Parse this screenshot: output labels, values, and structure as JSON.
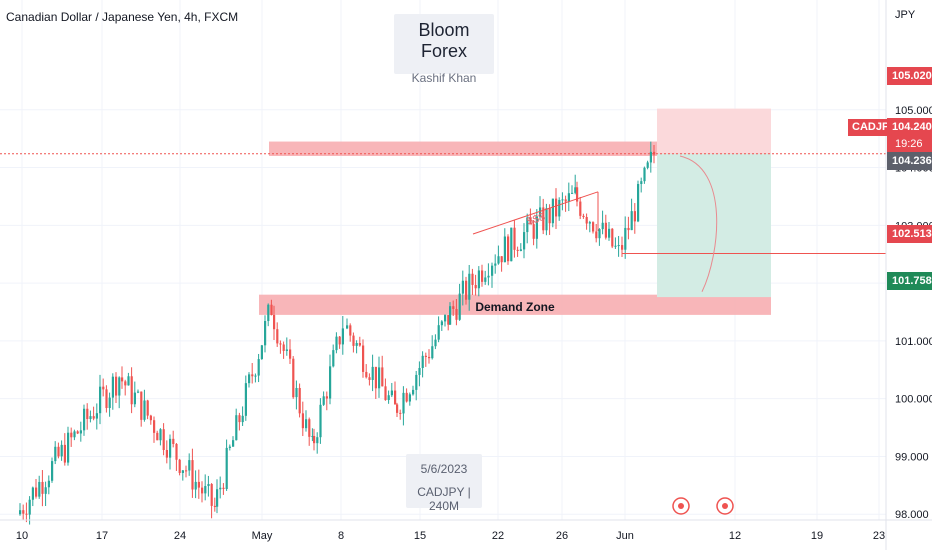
{
  "header": {
    "symbol_title": "Canadian Dollar / Japanese Yen, 4h, FXCM"
  },
  "watermark": {
    "title": "Bloom Forex",
    "subtitle": "Kashif Khan"
  },
  "info_box": {
    "date": "5/6/2023",
    "symbol_interval": "CADJPY | 240M"
  },
  "price_scale": {
    "currency": "JPY"
  },
  "badges": {
    "target": "105.020",
    "symbol": "CADJPY",
    "last": "104.240",
    "countdown": "19:26",
    "bid": "104.236",
    "level": "102.513",
    "stop": "101.758"
  },
  "annotations": {
    "demand_zone": "Demand Zone",
    "liquidity": "$$$"
  },
  "colors": {
    "up": "#26a69a",
    "down": "#ef5350",
    "zone": "#f7a9ad",
    "profit": "#d3ece4",
    "loss": "#fbd9db",
    "badge_red": "#e5474f",
    "badge_green": "#1f8a58",
    "badge_gray": "#5d606b"
  },
  "chart_data": {
    "type": "candlestick",
    "title": "Canadian Dollar / Japanese Yen, 4h, FXCM",
    "x_ticks": [
      "10",
      "17",
      "24",
      "May",
      "8",
      "15",
      "22",
      "26",
      "Jun",
      "12",
      "19",
      "23"
    ],
    "y_ticks": [
      98.0,
      99.0,
      100.0,
      101.0,
      102.0,
      103.0,
      104.0,
      105.0
    ],
    "y_tick_labels": [
      "98.000",
      "99.000",
      "100.000",
      "101.000",
      "102.000",
      "103.000",
      "104.000",
      "105.000"
    ],
    "ylim": [
      97.9,
      106.9
    ],
    "grid": true,
    "close_path": [
      {
        "date": "10",
        "value": 98.0
      },
      {
        "date": "17",
        "value": 100.4
      },
      {
        "date": "24",
        "value": 98.1
      },
      {
        "date": "May",
        "value": 101.6
      },
      {
        "date": "8",
        "value": 99.1
      },
      {
        "date": "8",
        "value": 101.3
      },
      {
        "date": "15",
        "value": 99.8
      },
      {
        "date": "15",
        "value": 101.4
      },
      {
        "date": "22",
        "value": 102.4
      },
      {
        "date": "26",
        "value": 103.5
      },
      {
        "date": "Jun",
        "value": 102.5
      },
      {
        "date": "Jun",
        "value": 104.24
      }
    ],
    "demand_zone": [
      101.45,
      101.8
    ],
    "resistance_zone": [
      104.2,
      104.45
    ],
    "position": {
      "target": 105.02,
      "entry": 104.24,
      "stop": 101.758,
      "level": 102.513
    },
    "last_price": 104.24
  }
}
